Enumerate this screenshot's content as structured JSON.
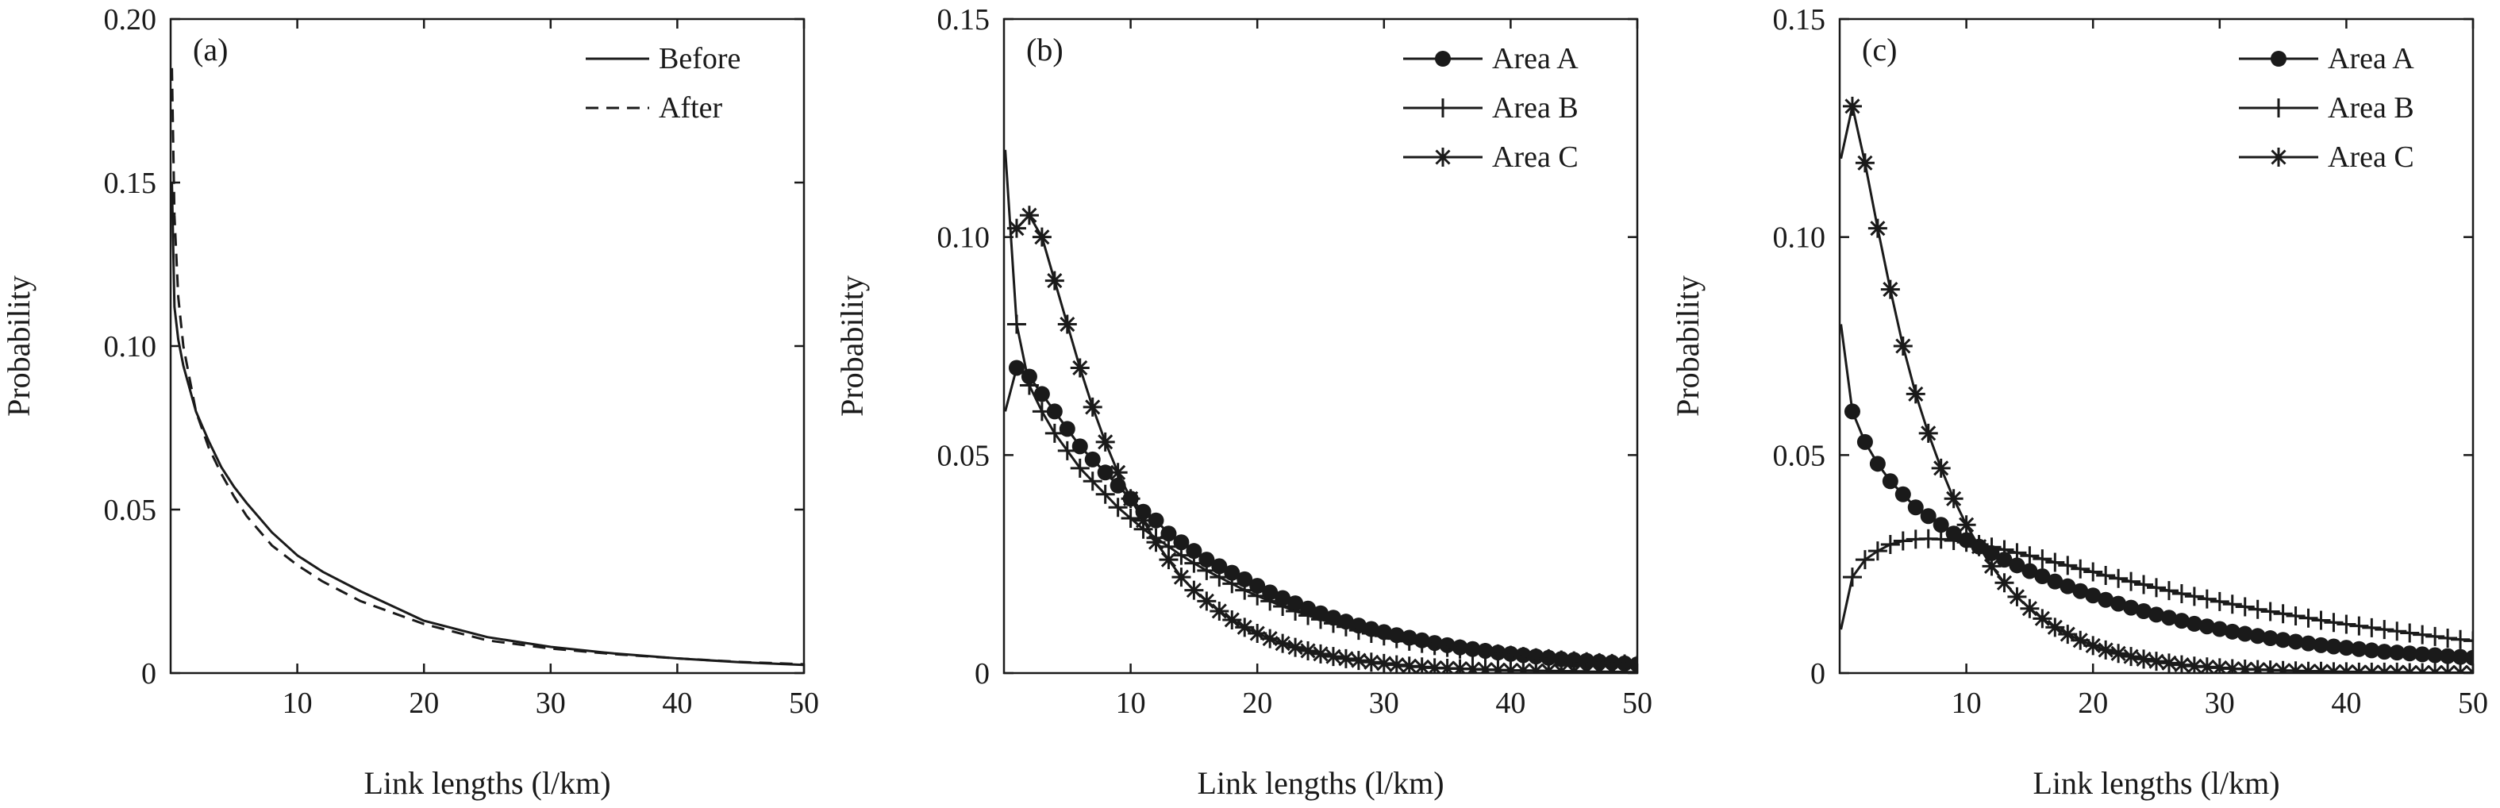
{
  "chart_data": [
    {
      "type": "line",
      "panel_label": "(a)",
      "xlabel": "Link lengths (l/km)",
      "ylabel": "Probability",
      "xlim": [
        0,
        50
      ],
      "ylim": [
        0,
        0.2
      ],
      "xticks": [
        10,
        20,
        30,
        40,
        50
      ],
      "xtick_labels": [
        "10",
        "20",
        "30",
        "40",
        "50"
      ],
      "yticks": [
        0,
        0.05,
        0.1,
        0.15,
        0.2
      ],
      "ytick_labels": [
        "0",
        "0.05",
        "0.10",
        "0.15",
        "0.20"
      ],
      "legend_position": "top-right",
      "series": [
        {
          "name": "Before",
          "style": "solid",
          "marker": "none",
          "x": [
            0.1,
            0.3,
            0.6,
            1,
            2,
            3,
            4,
            5,
            6,
            8,
            10,
            12,
            15,
            20,
            25,
            30,
            35,
            40,
            45,
            50
          ],
          "y": [
            0.15,
            0.112,
            0.102,
            0.094,
            0.08,
            0.071,
            0.063,
            0.057,
            0.052,
            0.043,
            0.036,
            0.031,
            0.025,
            0.016,
            0.011,
            0.008,
            0.006,
            0.0045,
            0.0033,
            0.0025
          ]
        },
        {
          "name": "After",
          "style": "dashed",
          "marker": "none",
          "x": [
            0.1,
            0.3,
            0.6,
            1,
            2,
            3,
            4,
            5,
            6,
            8,
            10,
            12,
            15,
            20,
            25,
            30,
            35,
            40,
            45,
            50
          ],
          "y": [
            0.185,
            0.14,
            0.115,
            0.1,
            0.08,
            0.069,
            0.061,
            0.054,
            0.048,
            0.039,
            0.033,
            0.028,
            0.022,
            0.015,
            0.01,
            0.0075,
            0.0058,
            0.0045,
            0.0034,
            0.0027
          ]
        }
      ]
    },
    {
      "type": "line",
      "panel_label": "(b)",
      "xlabel": "Link lengths (l/km)",
      "ylabel": "Probability",
      "xlim": [
        0,
        50
      ],
      "ylim": [
        0,
        0.15
      ],
      "xticks": [
        10,
        20,
        30,
        40,
        50
      ],
      "xtick_labels": [
        "10",
        "20",
        "30",
        "40",
        "50"
      ],
      "yticks": [
        0,
        0.05,
        0.1,
        0.15
      ],
      "ytick_labels": [
        "0",
        "0.05",
        "0.10",
        "0.15"
      ],
      "legend_position": "top-right",
      "series": [
        {
          "name": "Area A",
          "style": "solid",
          "marker": "circle",
          "x": [
            0.1,
            1,
            2,
            3,
            4,
            5,
            6,
            7,
            8,
            9,
            10,
            11,
            12,
            13,
            14,
            15,
            16,
            17,
            18,
            19,
            20,
            21,
            22,
            23,
            24,
            25,
            26,
            27,
            28,
            29,
            30,
            31,
            32,
            33,
            34,
            35,
            36,
            37,
            38,
            39,
            40,
            41,
            42,
            43,
            44,
            45,
            46,
            47,
            48,
            49,
            50
          ],
          "y": [
            0.06,
            0.07,
            0.068,
            0.064,
            0.06,
            0.056,
            0.052,
            0.049,
            0.046,
            0.043,
            0.04,
            0.037,
            0.035,
            0.032,
            0.03,
            0.028,
            0.026,
            0.0245,
            0.023,
            0.0215,
            0.02,
            0.0185,
            0.0172,
            0.016,
            0.0148,
            0.0137,
            0.0127,
            0.0118,
            0.0109,
            0.0101,
            0.0094,
            0.0087,
            0.0081,
            0.0075,
            0.0069,
            0.0064,
            0.0059,
            0.0055,
            0.0051,
            0.0047,
            0.0044,
            0.0041,
            0.0038,
            0.0035,
            0.0032,
            0.003,
            0.0028,
            0.0026,
            0.0024,
            0.0022,
            0.002
          ]
        },
        {
          "name": "Area B",
          "style": "solid",
          "marker": "plus",
          "x": [
            0.1,
            1,
            2,
            3,
            4,
            5,
            6,
            7,
            8,
            9,
            10,
            11,
            12,
            13,
            14,
            15,
            16,
            17,
            18,
            19,
            20,
            21,
            22,
            23,
            24,
            25,
            26,
            27,
            28,
            29,
            30,
            31,
            32,
            33,
            34,
            35,
            36,
            37,
            38,
            39,
            40,
            41,
            42,
            43,
            44,
            45,
            46,
            47,
            48,
            49,
            50
          ],
          "y": [
            0.12,
            0.08,
            0.066,
            0.06,
            0.055,
            0.051,
            0.047,
            0.044,
            0.041,
            0.038,
            0.0355,
            0.033,
            0.031,
            0.029,
            0.027,
            0.0252,
            0.0235,
            0.022,
            0.0205,
            0.019,
            0.0177,
            0.0165,
            0.0153,
            0.0142,
            0.0132,
            0.0123,
            0.0114,
            0.0106,
            0.0098,
            0.0091,
            0.0085,
            0.0079,
            0.0073,
            0.0068,
            0.0063,
            0.0059,
            0.0055,
            0.0051,
            0.0047,
            0.0044,
            0.0041,
            0.0038,
            0.0035,
            0.0033,
            0.003,
            0.0028,
            0.0026,
            0.0024,
            0.0022,
            0.0021,
            0.0019
          ]
        },
        {
          "name": "Area C",
          "style": "solid",
          "marker": "asterisk",
          "x": [
            1,
            2,
            3,
            4,
            5,
            6,
            7,
            8,
            9,
            10,
            11,
            12,
            13,
            14,
            15,
            16,
            17,
            18,
            19,
            20,
            21,
            22,
            23,
            24,
            25,
            26,
            27,
            28,
            29,
            30,
            31,
            32,
            33,
            34,
            35,
            36,
            37,
            38,
            39,
            40,
            41,
            42,
            43,
            44,
            45,
            46,
            47,
            48,
            49,
            50
          ],
          "y": [
            0.102,
            0.105,
            0.1,
            0.09,
            0.08,
            0.07,
            0.061,
            0.053,
            0.046,
            0.04,
            0.035,
            0.03,
            0.026,
            0.022,
            0.019,
            0.0165,
            0.0142,
            0.0122,
            0.0105,
            0.0091,
            0.0079,
            0.0068,
            0.0059,
            0.0051,
            0.0044,
            0.0038,
            0.0033,
            0.0029,
            0.0025,
            0.0022,
            0.0019,
            0.0016,
            0.0014,
            0.0012,
            0.0011,
            0.001,
            0.0009,
            0.0008,
            0.0007,
            0.0006,
            0.0006,
            0.0005,
            0.0005,
            0.0004,
            0.0004,
            0.0003,
            0.0003,
            0.0003,
            0.0002,
            0.0002
          ]
        }
      ]
    },
    {
      "type": "line",
      "panel_label": "(c)",
      "xlabel": "Link lengths (l/km)",
      "ylabel": "Probability",
      "xlim": [
        0,
        50
      ],
      "ylim": [
        0,
        0.15
      ],
      "xticks": [
        10,
        20,
        30,
        40,
        50
      ],
      "xtick_labels": [
        "10",
        "20",
        "30",
        "40",
        "50"
      ],
      "yticks": [
        0,
        0.05,
        0.1,
        0.15
      ],
      "ytick_labels": [
        "0",
        "0.05",
        "0.10",
        "0.15"
      ],
      "legend_position": "top-right",
      "series": [
        {
          "name": "Area A",
          "style": "solid",
          "marker": "circle",
          "x": [
            0.1,
            1,
            2,
            3,
            4,
            5,
            6,
            7,
            8,
            9,
            10,
            11,
            12,
            13,
            14,
            15,
            16,
            17,
            18,
            19,
            20,
            21,
            22,
            23,
            24,
            25,
            26,
            27,
            28,
            29,
            30,
            31,
            32,
            33,
            34,
            35,
            36,
            37,
            38,
            39,
            40,
            41,
            42,
            43,
            44,
            45,
            46,
            47,
            48,
            49,
            50
          ],
          "y": [
            0.08,
            0.06,
            0.053,
            0.048,
            0.044,
            0.041,
            0.038,
            0.036,
            0.034,
            0.032,
            0.0305,
            0.029,
            0.0275,
            0.026,
            0.0247,
            0.0234,
            0.0222,
            0.021,
            0.0199,
            0.0188,
            0.0178,
            0.0168,
            0.0159,
            0.015,
            0.0142,
            0.0134,
            0.0127,
            0.012,
            0.0113,
            0.0107,
            0.0101,
            0.0095,
            0.009,
            0.0085,
            0.008,
            0.0076,
            0.0072,
            0.0068,
            0.0064,
            0.0061,
            0.0058,
            0.0055,
            0.0052,
            0.0049,
            0.0047,
            0.0045,
            0.0043,
            0.0041,
            0.0039,
            0.0037,
            0.0035
          ]
        },
        {
          "name": "Area B",
          "style": "solid",
          "marker": "plus",
          "x": [
            0.1,
            1,
            2,
            3,
            4,
            5,
            6,
            7,
            8,
            9,
            10,
            11,
            12,
            13,
            14,
            15,
            16,
            17,
            18,
            19,
            20,
            21,
            22,
            23,
            24,
            25,
            26,
            27,
            28,
            29,
            30,
            31,
            32,
            33,
            34,
            35,
            36,
            37,
            38,
            39,
            40,
            41,
            42,
            43,
            44,
            45,
            46,
            47,
            48,
            49,
            50
          ],
          "y": [
            0.01,
            0.022,
            0.026,
            0.028,
            0.0295,
            0.0303,
            0.0307,
            0.0308,
            0.0307,
            0.0304,
            0.03,
            0.0295,
            0.0289,
            0.0283,
            0.0276,
            0.0269,
            0.0262,
            0.0254,
            0.0247,
            0.0239,
            0.0232,
            0.0224,
            0.0217,
            0.021,
            0.0203,
            0.0196,
            0.0189,
            0.0182,
            0.0176,
            0.017,
            0.0164,
            0.0158,
            0.0152,
            0.0146,
            0.0141,
            0.0136,
            0.0131,
            0.0126,
            0.0121,
            0.0116,
            0.0112,
            0.0108,
            0.0104,
            0.01,
            0.0096,
            0.0092,
            0.0088,
            0.0084,
            0.008,
            0.0077,
            0.0074
          ]
        },
        {
          "name": "Area C",
          "style": "solid",
          "marker": "asterisk",
          "x": [
            0.1,
            1,
            2,
            3,
            4,
            5,
            6,
            7,
            8,
            9,
            10,
            11,
            12,
            13,
            14,
            15,
            16,
            17,
            18,
            19,
            20,
            21,
            22,
            23,
            24,
            25,
            26,
            27,
            28,
            29,
            30,
            31,
            32,
            33,
            34,
            35,
            36,
            37,
            38,
            39,
            40,
            41,
            42,
            43,
            44,
            45,
            46,
            47,
            48,
            49,
            50
          ],
          "y": [
            0.118,
            0.13,
            0.117,
            0.102,
            0.088,
            0.075,
            0.064,
            0.055,
            0.047,
            0.04,
            0.034,
            0.029,
            0.0245,
            0.0207,
            0.0175,
            0.0148,
            0.0125,
            0.0105,
            0.0089,
            0.0075,
            0.0063,
            0.0053,
            0.0045,
            0.0038,
            0.0032,
            0.0027,
            0.0023,
            0.0019,
            0.0016,
            0.0014,
            0.0012,
            0.001,
            0.0009,
            0.0008,
            0.0007,
            0.0006,
            0.0005,
            0.0004,
            0.0004,
            0.0003,
            0.0003,
            0.0002,
            0.0002,
            0.0002,
            0.0002,
            0.0001,
            0.0001,
            0.0001,
            0.0001,
            0.0001,
            0.0001
          ]
        }
      ]
    }
  ]
}
